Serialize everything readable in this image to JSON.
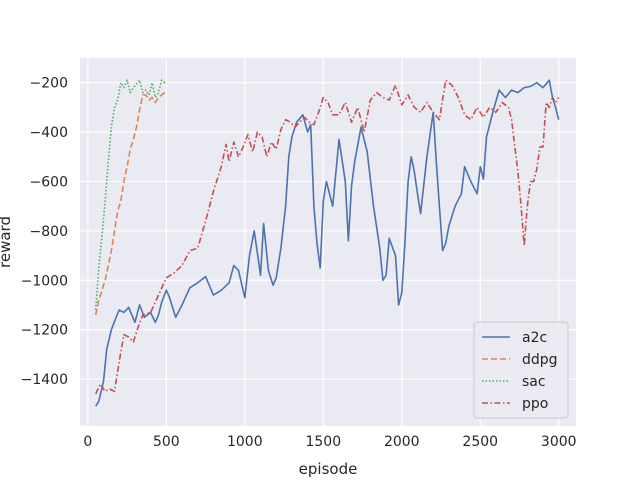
{
  "chart_data": {
    "type": "line",
    "title": "",
    "xlabel": "episode",
    "ylabel": "reward",
    "xlim": [
      -50,
      3110
    ],
    "ylim": [
      -1590,
      -100
    ],
    "xticks": [
      0,
      500,
      1000,
      1500,
      2000,
      2500,
      3000
    ],
    "yticks": [
      -1400,
      -1200,
      -1000,
      -800,
      -600,
      -400,
      -200
    ],
    "grid": true,
    "legend_position": "lower-right",
    "series": [
      {
        "name": "a2c",
        "color": "#4c72b0",
        "dash": "solid",
        "x": [
          50,
          70,
          100,
          120,
          150,
          180,
          200,
          230,
          260,
          280,
          300,
          330,
          360,
          400,
          430,
          450,
          470,
          500,
          520,
          540,
          560,
          600,
          650,
          700,
          750,
          800,
          850,
          900,
          930,
          960,
          1000,
          1030,
          1060,
          1080,
          1100,
          1120,
          1150,
          1180,
          1200,
          1230,
          1260,
          1280,
          1300,
          1330,
          1370,
          1400,
          1420,
          1440,
          1460,
          1480,
          1500,
          1520,
          1560,
          1600,
          1640,
          1660,
          1680,
          1700,
          1740,
          1780,
          1820,
          1860,
          1880,
          1900,
          1920,
          1960,
          1980,
          2000,
          2020,
          2040,
          2060,
          2080,
          2100,
          2120,
          2160,
          2200,
          2220,
          2240,
          2260,
          2280,
          2300,
          2340,
          2380,
          2400,
          2440,
          2480,
          2500,
          2520,
          2540,
          2580,
          2620,
          2660,
          2700,
          2740,
          2780,
          2820,
          2860,
          2900,
          2940,
          2960,
          2980,
          3000
        ],
        "values": [
          -1510,
          -1490,
          -1410,
          -1280,
          -1200,
          -1150,
          -1120,
          -1130,
          -1110,
          -1140,
          -1170,
          -1100,
          -1150,
          -1130,
          -1170,
          -1140,
          -1090,
          -1040,
          -1070,
          -1110,
          -1150,
          -1100,
          -1030,
          -1010,
          -985,
          -1060,
          -1040,
          -1010,
          -940,
          -960,
          -1070,
          -900,
          -800,
          -890,
          -980,
          -770,
          -960,
          -1020,
          -990,
          -870,
          -700,
          -500,
          -420,
          -360,
          -330,
          -400,
          -370,
          -700,
          -850,
          -950,
          -680,
          -600,
          -700,
          -430,
          -600,
          -840,
          -620,
          -520,
          -380,
          -480,
          -700,
          -870,
          -1000,
          -980,
          -830,
          -900,
          -1100,
          -1050,
          -850,
          -600,
          -500,
          -560,
          -650,
          -730,
          -500,
          -320,
          -520,
          -700,
          -880,
          -850,
          -780,
          -700,
          -650,
          -540,
          -600,
          -650,
          -540,
          -590,
          -420,
          -320,
          -230,
          -260,
          -230,
          -240,
          -220,
          -215,
          -200,
          -220,
          -190,
          -260,
          -300,
          -350
        ]
      },
      {
        "name": "ddpg",
        "color": "#dd8452",
        "dash": "dashed",
        "x": [
          50,
          70,
          90,
          110,
          130,
          150,
          170,
          190,
          210,
          230,
          250,
          270,
          290,
          310,
          330,
          350,
          370,
          390,
          410,
          430,
          450,
          470,
          490,
          500
        ],
        "values": [
          -1140,
          -1080,
          -1040,
          -1000,
          -940,
          -880,
          -800,
          -720,
          -680,
          -600,
          -540,
          -470,
          -430,
          -380,
          -310,
          -250,
          -250,
          -270,
          -260,
          -280,
          -260,
          -250,
          -240,
          -230
        ]
      },
      {
        "name": "sac",
        "color": "#55a868",
        "dash": "dotted",
        "x": [
          50,
          70,
          90,
          110,
          130,
          150,
          170,
          190,
          210,
          230,
          250,
          270,
          290,
          310,
          330,
          350,
          370,
          390,
          410,
          430,
          450,
          470,
          490,
          500
        ],
        "values": [
          -1120,
          -950,
          -820,
          -680,
          -520,
          -380,
          -300,
          -270,
          -200,
          -220,
          -190,
          -240,
          -220,
          -205,
          -190,
          -240,
          -230,
          -250,
          -200,
          -260,
          -240,
          -190,
          -200,
          -195
        ]
      },
      {
        "name": "ppo",
        "color": "#c44e52",
        "dash": "dashdot",
        "x": [
          50,
          80,
          110,
          140,
          170,
          200,
          230,
          260,
          290,
          320,
          350,
          400,
          450,
          500,
          550,
          600,
          650,
          700,
          750,
          800,
          850,
          880,
          900,
          930,
          960,
          990,
          1020,
          1050,
          1080,
          1110,
          1140,
          1170,
          1200,
          1230,
          1260,
          1290,
          1320,
          1350,
          1380,
          1410,
          1440,
          1470,
          1500,
          1530,
          1560,
          1600,
          1640,
          1680,
          1720,
          1760,
          1800,
          1840,
          1880,
          1920,
          1960,
          2000,
          2040,
          2080,
          2120,
          2160,
          2200,
          2240,
          2280,
          2320,
          2360,
          2400,
          2440,
          2480,
          2520,
          2560,
          2600,
          2640,
          2680,
          2700,
          2720,
          2740,
          2760,
          2780,
          2800,
          2820,
          2840,
          2860,
          2880,
          2900,
          2920,
          2940,
          2960,
          2980,
          3000
        ],
        "values": [
          -1460,
          -1420,
          -1450,
          -1440,
          -1450,
          -1330,
          -1220,
          -1230,
          -1250,
          -1190,
          -1140,
          -1130,
          -1060,
          -990,
          -970,
          -940,
          -880,
          -870,
          -760,
          -640,
          -540,
          -450,
          -520,
          -440,
          -500,
          -460,
          -410,
          -480,
          -400,
          -420,
          -500,
          -440,
          -470,
          -390,
          -350,
          -360,
          -380,
          -360,
          -340,
          -360,
          -370,
          -320,
          -260,
          -280,
          -330,
          -330,
          -280,
          -360,
          -300,
          -400,
          -270,
          -240,
          -260,
          -270,
          -210,
          -290,
          -250,
          -300,
          -320,
          -280,
          -320,
          -350,
          -190,
          -210,
          -260,
          -330,
          -350,
          -300,
          -340,
          -300,
          -320,
          -280,
          -300,
          -350,
          -460,
          -560,
          -700,
          -860,
          -700,
          -600,
          -600,
          -550,
          -460,
          -460,
          -280,
          -300,
          -260,
          -280,
          -260
        ]
      }
    ]
  }
}
